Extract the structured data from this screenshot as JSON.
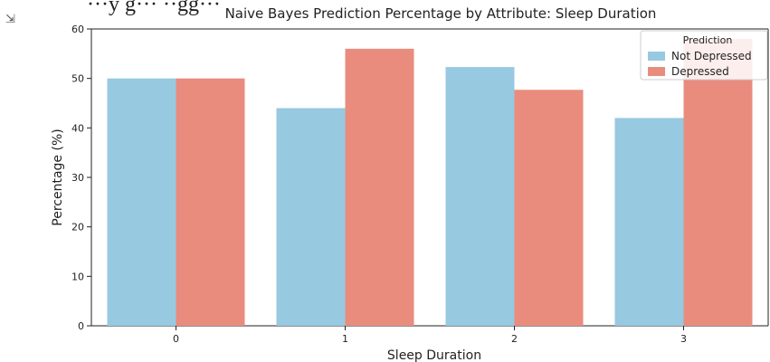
{
  "notebook": {
    "cutoff_text": "···y g··· ··gg···",
    "output_icon": "output-toggle-icon"
  },
  "chart_data": {
    "type": "bar",
    "title": "Naive Bayes Prediction Percentage by Attribute: Sleep Duration",
    "xlabel": "Sleep Duration",
    "ylabel": "Percentage (%)",
    "categories": [
      "0",
      "1",
      "2",
      "3"
    ],
    "ylim": [
      0,
      60
    ],
    "yticks": [
      0,
      10,
      20,
      30,
      40,
      50,
      60
    ],
    "series": [
      {
        "name": "Not Depressed",
        "values": [
          50,
          44,
          52.3,
          42
        ],
        "color": "#97c9e0"
      },
      {
        "name": "Depressed",
        "values": [
          50,
          56,
          47.7,
          58
        ],
        "color": "#e98c7e"
      }
    ],
    "legend": {
      "title": "Prediction",
      "placement": "top-right"
    },
    "grid": false
  }
}
